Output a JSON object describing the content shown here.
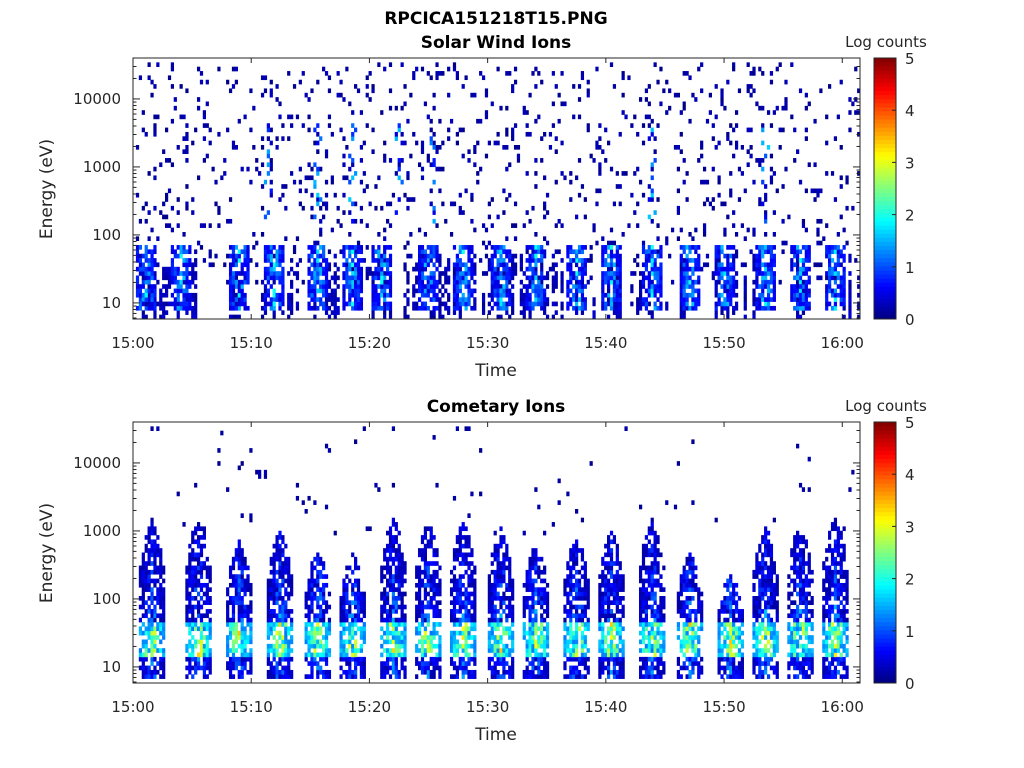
{
  "figure_title": "RPCICA151218T15.PNG",
  "chart_data": [
    {
      "type": "heatmap",
      "title": "Solar Wind Ions",
      "xlabel": "Time",
      "ylabel": "Energy (eV)",
      "x_ticks": [
        "15:00",
        "15:10",
        "15:20",
        "15:30",
        "15:40",
        "15:50",
        "16:00"
      ],
      "x_range_minutes": [
        0,
        61.5
      ],
      "y_scale": "log",
      "y_ticks": [
        {
          "value": 10,
          "label": "10"
        },
        {
          "value": 100,
          "label": "100"
        },
        {
          "value": 1000,
          "label": "1000"
        },
        {
          "value": 10000,
          "label": "10000"
        }
      ],
      "y_range": [
        5.8,
        40000
      ],
      "colorbar": {
        "label": "Log counts",
        "range": [
          0,
          5
        ],
        "ticks": [
          "0",
          "1",
          "2",
          "3",
          "4",
          "5"
        ],
        "colormap": "jet"
      },
      "grid": false,
      "low_energy_burst_minutes": [
        1,
        4,
        9,
        12,
        15.5,
        18.5,
        21,
        25,
        28,
        31,
        34,
        37.5,
        40.5,
        44,
        47,
        50,
        53.5,
        56.5,
        59.5
      ],
      "high_energy_streak_minutes": [
        11.5,
        15.5,
        18.5,
        22.5,
        25.5,
        44,
        53.5
      ],
      "background_noise": "sparse scattered single counts (log counts ~0) across 20-30000 eV"
    },
    {
      "type": "heatmap",
      "title": "Cometary Ions",
      "xlabel": "Time",
      "ylabel": "Energy (eV)",
      "x_ticks": [
        "15:00",
        "15:10",
        "15:20",
        "15:30",
        "15:40",
        "15:50",
        "16:00"
      ],
      "x_range_minutes": [
        0,
        61.5
      ],
      "y_scale": "log",
      "y_ticks": [
        {
          "value": 10,
          "label": "10"
        },
        {
          "value": 100,
          "label": "100"
        },
        {
          "value": 1000,
          "label": "1000"
        },
        {
          "value": 10000,
          "label": "10000"
        }
      ],
      "y_range": [
        5.8,
        40000
      ],
      "colorbar": {
        "label": "Log counts",
        "range": [
          0,
          5
        ],
        "ticks": [
          "0",
          "1",
          "2",
          "3",
          "4",
          "5"
        ],
        "colormap": "jet"
      },
      "grid": false,
      "burst_minutes": [
        1.5,
        5.5,
        9,
        12.5,
        15.5,
        18.5,
        22,
        25,
        28,
        31,
        34,
        37.5,
        40.5,
        44,
        47,
        50.5,
        53.5,
        56.5,
        59.5
      ],
      "peak_energy_band_eV": [
        15,
        45
      ],
      "peak_log_counts": 3.5,
      "background_noise": "sparse scattered counts above 1000 eV"
    }
  ]
}
